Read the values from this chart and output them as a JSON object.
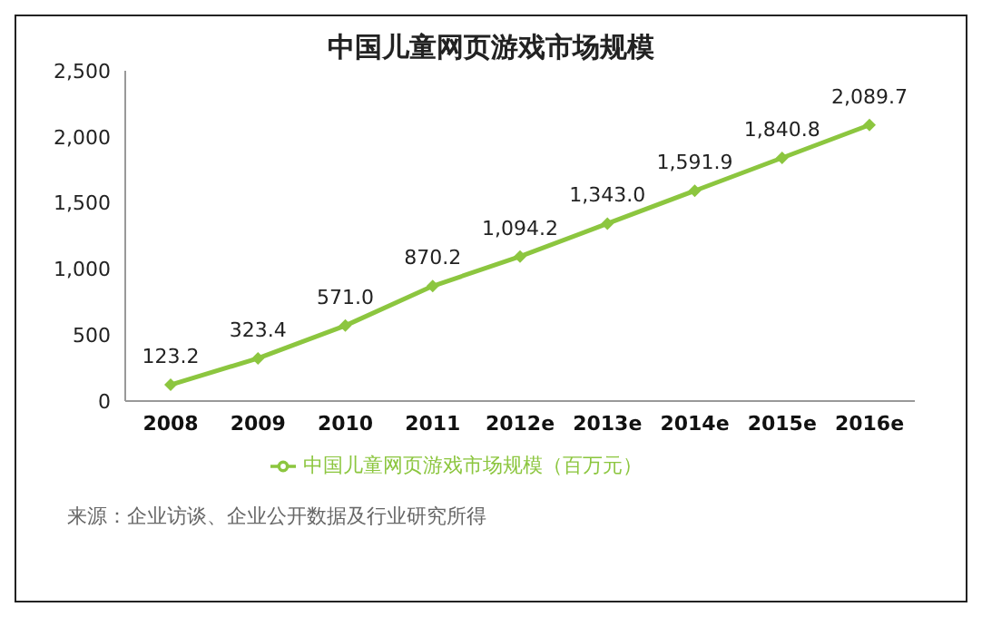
{
  "chart_data": {
    "type": "line",
    "title": "中国儿童网页游戏市场规模",
    "categories": [
      "2008",
      "2009",
      "2010",
      "2011",
      "2012e",
      "2013e",
      "2014e",
      "2015e",
      "2016e"
    ],
    "series": [
      {
        "name": "中国儿童网页游戏市场规模（百万元）",
        "color": "#8cc63f",
        "values": [
          123.2,
          323.4,
          571.0,
          870.2,
          1094.2,
          1343.0,
          1591.9,
          1840.8,
          2089.7
        ],
        "value_labels": [
          "123.2",
          "323.4",
          "571.0",
          "870.2",
          "1,094.2",
          "1,343.0",
          "1,591.9",
          "1,840.8",
          "2,089.7"
        ]
      }
    ],
    "ylim": [
      0,
      2500
    ],
    "yticks": [
      {
        "value": 0,
        "label": "0"
      },
      {
        "value": 500,
        "label": "500"
      },
      {
        "value": 1000,
        "label": "1,000"
      },
      {
        "value": 1500,
        "label": "1,500"
      },
      {
        "value": 2000,
        "label": "2,000"
      },
      {
        "value": 2500,
        "label": "2,500"
      }
    ],
    "grid": false,
    "legend": "bottom",
    "marker": "diamond",
    "line_style": "solid",
    "annotations": [
      "来源：企业访谈、企业公开数据及行业研究所得"
    ]
  }
}
